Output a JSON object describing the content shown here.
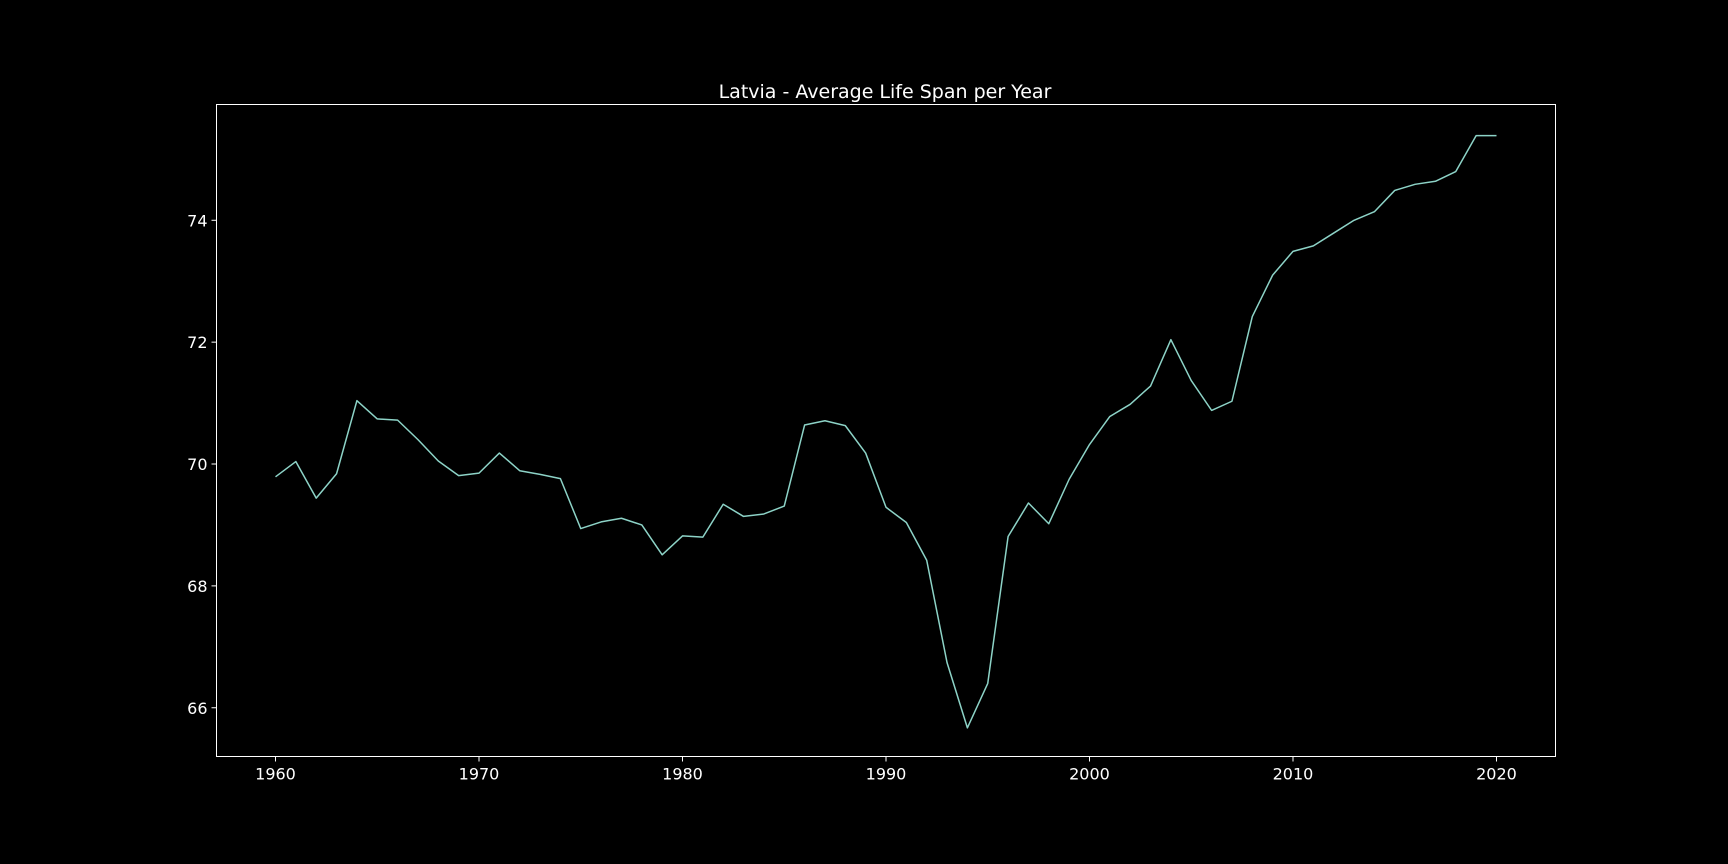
{
  "chart_data": {
    "type": "line",
    "title": "Latvia - Average Life Span per Year",
    "xlabel": "",
    "ylabel": "",
    "xlim": [
      1957.1,
      2022.9
    ],
    "ylim": [
      65.2,
      75.9
    ],
    "xticks": [
      1960,
      1970,
      1980,
      1990,
      2000,
      2010,
      2020
    ],
    "yticks": [
      66,
      68,
      70,
      72,
      74
    ],
    "grid": false,
    "colors": {
      "background": "#000000",
      "line": "#8dd3c7",
      "text": "#ffffff",
      "axes": "#ffffff"
    },
    "series": [
      {
        "x": [
          1960,
          1961,
          1962,
          1963,
          1964,
          1965,
          1966,
          1967,
          1968,
          1969,
          1970,
          1971,
          1972,
          1973,
          1974,
          1975,
          1976,
          1977,
          1978,
          1979,
          1980,
          1981,
          1982,
          1983,
          1984,
          1985,
          1986,
          1987,
          1988,
          1989,
          1990,
          1991,
          1992,
          1993,
          1994,
          1995,
          1996,
          1997,
          1998,
          1999,
          2000,
          2001,
          2002,
          2003,
          2004,
          2005,
          2006,
          2007,
          2008,
          2009,
          2010,
          2011,
          2012,
          2013,
          2014,
          2015,
          2016,
          2017,
          2018,
          2019,
          2020
        ],
        "values": [
          69.79,
          70.04,
          69.44,
          69.84,
          71.04,
          70.74,
          70.72,
          70.4,
          70.05,
          69.81,
          69.85,
          70.18,
          69.89,
          69.83,
          69.76,
          68.94,
          69.05,
          69.11,
          69.0,
          68.51,
          68.82,
          68.8,
          69.34,
          69.14,
          69.18,
          69.31,
          70.64,
          70.71,
          70.63,
          70.18,
          69.29,
          69.04,
          68.42,
          66.74,
          65.67,
          66.4,
          68.81,
          69.36,
          69.02,
          69.75,
          70.32,
          70.78,
          70.98,
          71.28,
          72.04,
          71.37,
          70.88,
          71.03,
          72.42,
          73.1,
          73.49,
          73.58,
          73.79,
          74.0,
          74.14,
          74.49,
          74.59,
          74.64,
          74.8,
          75.39,
          75.39
        ]
      }
    ]
  }
}
